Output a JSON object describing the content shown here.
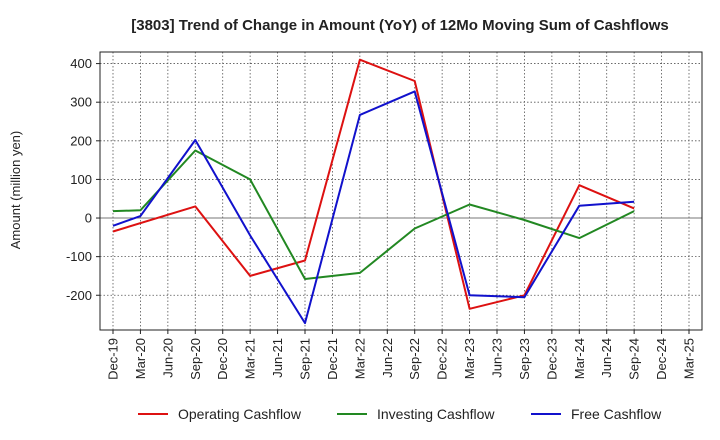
{
  "chart_data": {
    "type": "line",
    "title": "[3803]  Trend of Change in Amount (YoY) of 12Mo Moving Sum of Cashflows",
    "xlabel": "",
    "ylabel": "Amount (million yen)",
    "ylim": [
      -290,
      430
    ],
    "yticks": [
      400,
      300,
      200,
      100,
      0,
      -100,
      -200
    ],
    "ytick_labels": [
      "400",
      "300",
      "200",
      "100",
      "0",
      "-100",
      "-200"
    ],
    "categories": [
      "Dec-19",
      "Mar-20",
      "Jun-20",
      "Sep-20",
      "Dec-20",
      "Mar-21",
      "Jun-21",
      "Sep-21",
      "Dec-21",
      "Mar-22",
      "Jun-22",
      "Sep-22",
      "Dec-22",
      "Mar-23",
      "Jun-23",
      "Sep-23",
      "Dec-23",
      "Mar-24",
      "Jun-24",
      "Sep-24",
      "Dec-24",
      "Mar-25"
    ],
    "xtick_labels": [
      "Dec-19",
      "Mar-20",
      "Jun-20",
      "Sep-20",
      "Dec-20",
      "Mar-21",
      "Jun-21",
      "Sep-21",
      "Dec-21",
      "Mar-22",
      "Jun-22",
      "Sep-22",
      "Dec-22",
      "Mar-23",
      "Jun-23",
      "Sep-23",
      "Dec-23",
      "Mar-24",
      "Jun-24",
      "Sep-24",
      "Dec-24",
      "Mar-25"
    ],
    "grid": true,
    "legend_position": "bottom",
    "series": [
      {
        "name": "Operating Cashflow",
        "color": "#dd1111",
        "values": [
          -35,
          null,
          null,
          30,
          null,
          -150,
          null,
          -110,
          null,
          410,
          null,
          355,
          null,
          -235,
          null,
          -200,
          null,
          85,
          null,
          25,
          null,
          null
        ]
      },
      {
        "name": "Investing Cashflow",
        "color": "#228822",
        "values": [
          18,
          20,
          null,
          175,
          null,
          100,
          null,
          -158,
          null,
          -142,
          null,
          -27,
          null,
          35,
          null,
          -5,
          null,
          -52,
          null,
          18,
          null,
          null
        ]
      },
      {
        "name": "Free Cashflow",
        "color": "#1111cc",
        "values": [
          -20,
          5,
          null,
          202,
          null,
          -45,
          null,
          -272,
          null,
          267,
          null,
          328,
          null,
          -200,
          null,
          -205,
          null,
          32,
          null,
          42,
          null,
          null
        ]
      }
    ]
  }
}
